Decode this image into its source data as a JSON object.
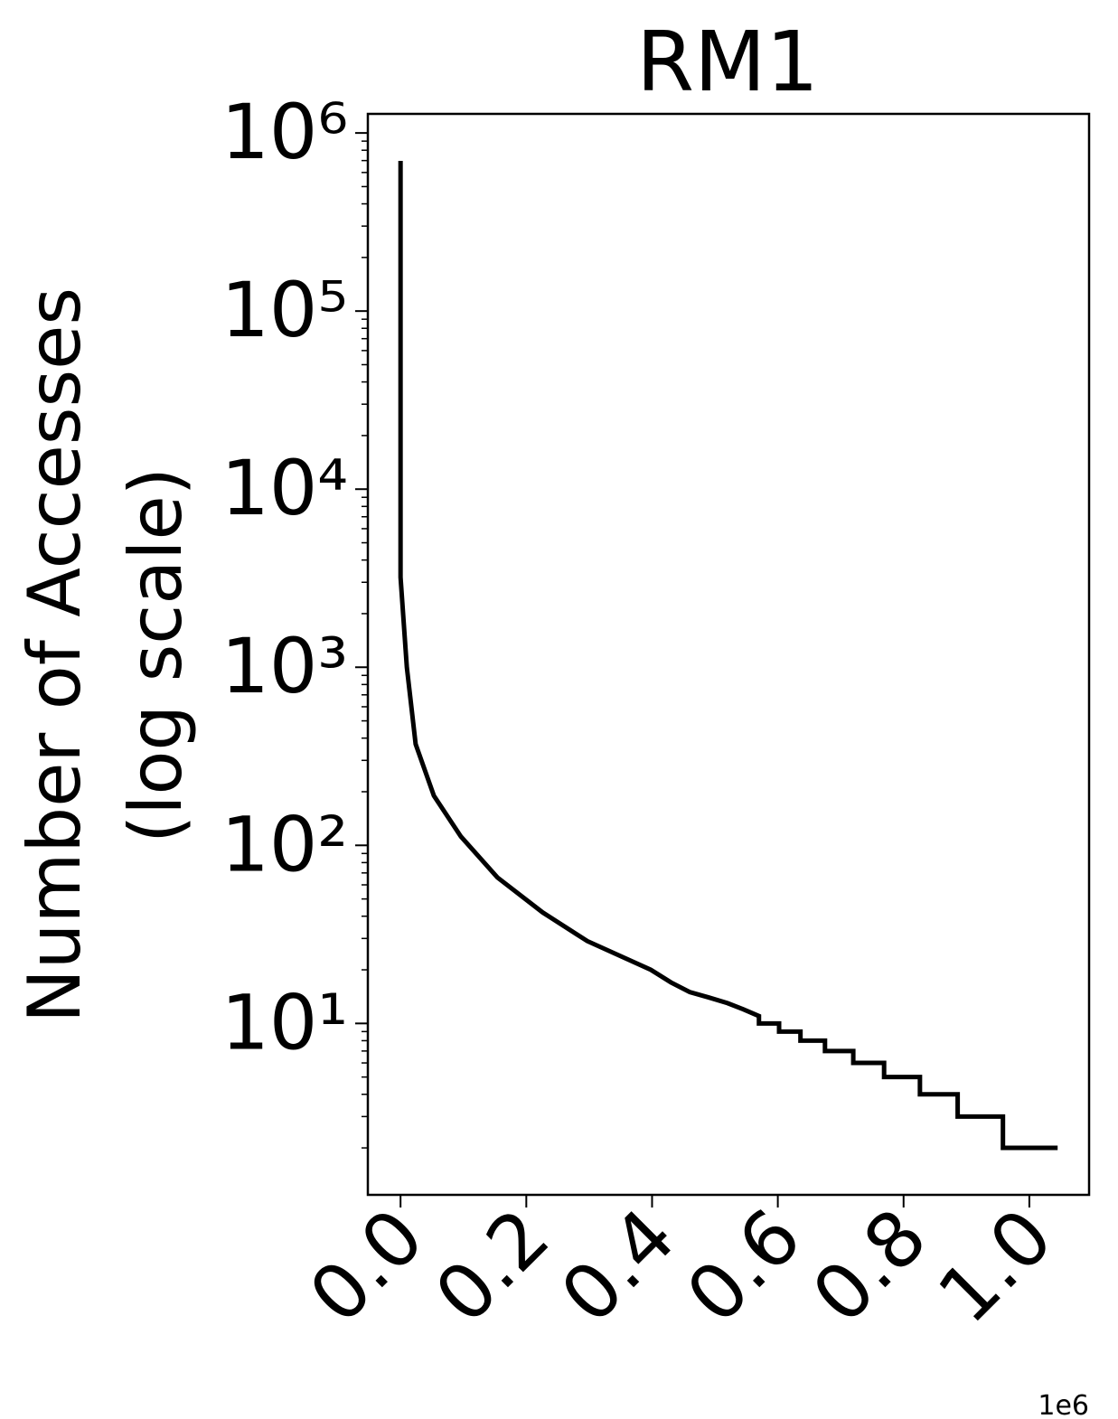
{
  "chart_data": {
    "type": "line",
    "title": "RM1",
    "y_label": [
      "Number of Accesses",
      "(log scale)"
    ],
    "x_offset_label": "1e6",
    "y_log": true,
    "xlim": [
      -52000,
      1095000
    ],
    "ylim": [
      1.09,
      1280000
    ],
    "xticks": [
      {
        "value": 0,
        "label": "0.0"
      },
      {
        "value": 200000,
        "label": "0.2"
      },
      {
        "value": 400000,
        "label": "0.4"
      },
      {
        "value": 600000,
        "label": "0.6"
      },
      {
        "value": 800000,
        "label": "0.8"
      },
      {
        "value": 1000000,
        "label": "1.0"
      }
    ],
    "yticks": [
      {
        "value": 10,
        "label": "10¹"
      },
      {
        "value": 100,
        "label": "10²"
      },
      {
        "value": 1000,
        "label": "10³"
      },
      {
        "value": 10000,
        "label": "10⁴"
      },
      {
        "value": 100000,
        "label": "10⁵"
      },
      {
        "value": 1000000,
        "label": "10⁶"
      }
    ],
    "series": [
      {
        "color": "#000000",
        "x": [
          0,
          0,
          10000,
          24000,
          53000,
          96000,
          154000,
          226000,
          297000,
          398000,
          430000,
          460000,
          490000,
          520000,
          545000,
          570000,
          570000,
          602000,
          602000,
          636000,
          636000,
          675000,
          675000,
          720000,
          720000,
          769000,
          769000,
          826000,
          826000,
          886000,
          886000,
          958000,
          958000,
          1045000
        ],
        "values": [
          697000,
          3200,
          1000,
          370,
          190,
          112,
          66,
          42,
          29,
          20,
          17,
          15,
          14,
          13,
          12,
          11,
          10,
          10,
          9,
          9,
          8,
          8,
          7,
          7,
          6,
          6,
          5,
          5,
          4,
          4,
          3,
          3,
          2,
          2
        ]
      }
    ]
  }
}
